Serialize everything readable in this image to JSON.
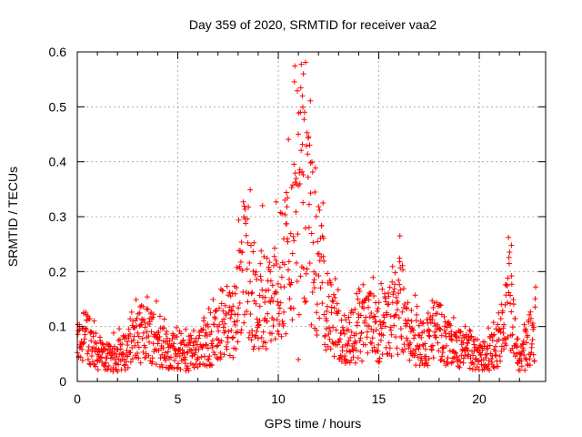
{
  "chart_data": {
    "type": "scatter",
    "title": "Day 359 of 2020, SRMTID for receiver vaa2",
    "xlabel": "GPS time / hours",
    "ylabel": "SRMTID / TECUs",
    "xlim": [
      0,
      23.3
    ],
    "ylim": [
      0,
      0.6
    ],
    "xticks": [
      "0",
      "5",
      "10",
      "15",
      "20"
    ],
    "yticks": [
      "0",
      "0.1",
      "0.2",
      "0.3",
      "0.4",
      "0.5",
      "0.6"
    ],
    "grid": true,
    "marker": "+",
    "color": "#ff0000",
    "envelope": [
      [
        0.0,
        0.075
      ],
      [
        0.3,
        0.085
      ],
      [
        0.6,
        0.09
      ],
      [
        0.9,
        0.06
      ],
      [
        1.2,
        0.05
      ],
      [
        1.6,
        0.045
      ],
      [
        2.0,
        0.05
      ],
      [
        2.4,
        0.06
      ],
      [
        2.8,
        0.075
      ],
      [
        3.2,
        0.095
      ],
      [
        3.5,
        0.11
      ],
      [
        3.8,
        0.085
      ],
      [
        4.2,
        0.07
      ],
      [
        4.6,
        0.06
      ],
      [
        5.0,
        0.055
      ],
      [
        5.5,
        0.05
      ],
      [
        6.0,
        0.06
      ],
      [
        6.5,
        0.075
      ],
      [
        7.0,
        0.09
      ],
      [
        7.4,
        0.1
      ],
      [
        7.8,
        0.12
      ],
      [
        8.1,
        0.17
      ],
      [
        8.4,
        0.24
      ],
      [
        8.6,
        0.2
      ],
      [
        8.9,
        0.14
      ],
      [
        9.2,
        0.17
      ],
      [
        9.6,
        0.15
      ],
      [
        10.0,
        0.19
      ],
      [
        10.4,
        0.25
      ],
      [
        10.8,
        0.3
      ],
      [
        11.1,
        0.36
      ],
      [
        11.4,
        0.33
      ],
      [
        11.7,
        0.27
      ],
      [
        12.0,
        0.22
      ],
      [
        12.3,
        0.17
      ],
      [
        12.6,
        0.12
      ],
      [
        13.0,
        0.09
      ],
      [
        13.4,
        0.085
      ],
      [
        13.8,
        0.09
      ],
      [
        14.2,
        0.1
      ],
      [
        14.6,
        0.11
      ],
      [
        15.0,
        0.1
      ],
      [
        15.4,
        0.11
      ],
      [
        15.8,
        0.14
      ],
      [
        16.1,
        0.12
      ],
      [
        16.5,
        0.1
      ],
      [
        17.0,
        0.075
      ],
      [
        17.4,
        0.08
      ],
      [
        17.8,
        0.1
      ],
      [
        18.2,
        0.09
      ],
      [
        18.7,
        0.065
      ],
      [
        19.2,
        0.06
      ],
      [
        19.7,
        0.055
      ],
      [
        20.2,
        0.05
      ],
      [
        20.6,
        0.06
      ],
      [
        21.0,
        0.075
      ],
      [
        21.3,
        0.1
      ],
      [
        21.5,
        0.17
      ],
      [
        21.7,
        0.1
      ],
      [
        22.0,
        0.04
      ],
      [
        22.3,
        0.06
      ],
      [
        22.6,
        0.09
      ],
      [
        22.8,
        0.11
      ]
    ],
    "notable_points": [
      [
        11.25,
        0.56
      ],
      [
        11.2,
        0.52
      ],
      [
        11.1,
        0.49
      ],
      [
        16.05,
        0.265
      ],
      [
        21.6,
        0.248
      ],
      [
        11.0,
        0.04
      ]
    ]
  }
}
